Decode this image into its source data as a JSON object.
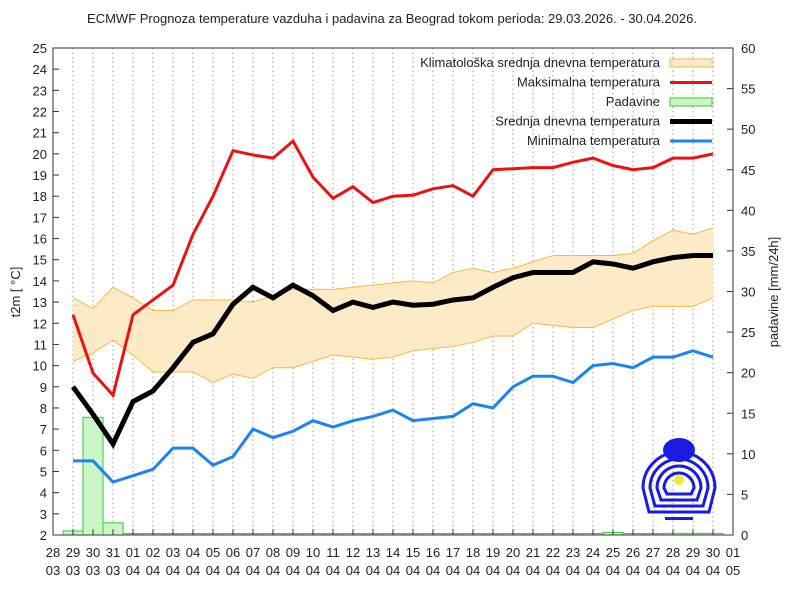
{
  "chart_data": {
    "type": "line",
    "title": "ECMWF Prognoza temperature vazduha i padavina za Beograd tokom perioda: 29.03.2026. - 30.04.2026.",
    "ylabel": "t2m [ °C]",
    "y2label": "padavine [mm/24h]",
    "ylim": [
      2,
      25
    ],
    "y2lim": [
      0,
      60
    ],
    "yticks": [
      2,
      3,
      4,
      5,
      6,
      7,
      8,
      9,
      10,
      11,
      12,
      13,
      14,
      15,
      16,
      17,
      18,
      19,
      20,
      21,
      22,
      23,
      24,
      25
    ],
    "y2ticks": [
      0,
      5,
      10,
      15,
      20,
      25,
      30,
      35,
      40,
      45,
      50,
      55,
      60
    ],
    "xtick_labels": [
      [
        "28",
        "03"
      ],
      [
        "29",
        "03"
      ],
      [
        "30",
        "03"
      ],
      [
        "31",
        "03"
      ],
      [
        "01",
        "04"
      ],
      [
        "02",
        "04"
      ],
      [
        "03",
        "04"
      ],
      [
        "04",
        "04"
      ],
      [
        "05",
        "04"
      ],
      [
        "06",
        "04"
      ],
      [
        "07",
        "04"
      ],
      [
        "08",
        "04"
      ],
      [
        "09",
        "04"
      ],
      [
        "10",
        "04"
      ],
      [
        "11",
        "04"
      ],
      [
        "12",
        "04"
      ],
      [
        "13",
        "04"
      ],
      [
        "14",
        "04"
      ],
      [
        "15",
        "04"
      ],
      [
        "16",
        "04"
      ],
      [
        "17",
        "04"
      ],
      [
        "18",
        "04"
      ],
      [
        "19",
        "04"
      ],
      [
        "20",
        "04"
      ],
      [
        "21",
        "04"
      ],
      [
        "22",
        "04"
      ],
      [
        "23",
        "04"
      ],
      [
        "24",
        "04"
      ],
      [
        "25",
        "04"
      ],
      [
        "26",
        "04"
      ],
      [
        "27",
        "04"
      ],
      [
        "28",
        "04"
      ],
      [
        "29",
        "04"
      ],
      [
        "30",
        "04"
      ],
      [
        "01",
        "05"
      ]
    ],
    "x": [
      "29.03",
      "30.03",
      "31.03",
      "01.04",
      "02.04",
      "03.04",
      "04.04",
      "05.04",
      "06.04",
      "07.04",
      "08.04",
      "09.04",
      "10.04",
      "11.04",
      "12.04",
      "13.04",
      "14.04",
      "15.04",
      "16.04",
      "17.04",
      "18.04",
      "19.04",
      "20.04",
      "21.04",
      "22.04",
      "23.04",
      "24.04",
      "25.04",
      "26.04",
      "27.04",
      "28.04",
      "29.04",
      "30.04"
    ],
    "grid": "vertical dotted",
    "legend": "top-right",
    "climatology": {
      "name": "Klimatološka srednja dnevna temperatura",
      "color": "#f5b942",
      "fill": "#fdebc8",
      "upper": [
        13.2,
        12.7,
        13.7,
        13.2,
        12.6,
        12.6,
        13.1,
        13.1,
        13.1,
        13.0,
        13.3,
        13.6,
        13.6,
        13.6,
        13.7,
        13.8,
        13.9,
        14.0,
        13.9,
        14.4,
        14.6,
        14.4,
        14.6,
        14.9,
        15.2,
        15.2,
        15.2,
        15.2,
        15.3,
        15.9,
        16.4,
        16.2,
        16.5
      ],
      "lower": [
        10.2,
        10.6,
        11.2,
        10.5,
        9.7,
        9.7,
        9.7,
        9.2,
        9.6,
        9.4,
        9.9,
        9.9,
        10.2,
        10.5,
        10.4,
        10.3,
        10.4,
        10.7,
        10.8,
        10.9,
        11.1,
        11.4,
        11.4,
        12.0,
        11.9,
        11.8,
        11.8,
        12.2,
        12.6,
        12.8,
        12.8,
        12.8,
        13.2
      ]
    },
    "series": [
      {
        "name": "Maksimalna temperatura",
        "color": "#ee1111",
        "width": 3,
        "values": [
          12.4,
          9.65,
          8.6,
          12.4,
          13.1,
          13.8,
          16.2,
          18.0,
          20.15,
          19.95,
          19.8,
          20.6,
          18.9,
          17.9,
          18.45,
          17.7,
          18.0,
          18.05,
          18.35,
          18.5,
          18.0,
          19.25,
          19.3,
          19.35,
          19.35,
          19.6,
          19.8,
          19.45,
          19.25,
          19.35,
          19.8,
          19.8,
          20.0
        ]
      },
      {
        "name": "Srednja dnevna temperatura",
        "color": "#000000",
        "width": 5,
        "values": [
          9.0,
          7.7,
          6.3,
          8.3,
          8.8,
          9.9,
          11.1,
          11.5,
          12.9,
          13.7,
          13.2,
          13.8,
          13.3,
          12.6,
          13.0,
          12.75,
          13.0,
          12.85,
          12.9,
          13.1,
          13.2,
          13.7,
          14.15,
          14.4,
          14.4,
          14.4,
          14.9,
          14.8,
          14.6,
          14.9,
          15.1,
          15.2,
          15.2
        ]
      },
      {
        "name": "Minimalna temperatura",
        "color": "#1a85f0",
        "width": 3,
        "values": [
          5.5,
          5.5,
          4.5,
          4.8,
          5.1,
          6.1,
          6.1,
          5.3,
          5.7,
          7.0,
          6.6,
          6.9,
          7.4,
          7.1,
          7.4,
          7.6,
          7.9,
          7.4,
          7.5,
          7.6,
          8.2,
          8.0,
          9.0,
          9.5,
          9.5,
          9.2,
          10.0,
          10.1,
          9.9,
          10.4,
          10.4,
          10.7,
          10.4
        ]
      }
    ],
    "precipitation": {
      "name": "Padavine",
      "color": "#33cc33",
      "fill": "#ccf5c8",
      "axis": "right",
      "values": [
        0.5,
        14.5,
        1.5,
        0.1,
        0.1,
        0.1,
        0.1,
        0,
        0,
        0,
        0,
        0,
        0,
        0,
        0,
        0,
        0,
        0,
        0,
        0,
        0,
        0,
        0.1,
        0.1,
        0.1,
        0.1,
        0,
        0.3,
        0.1,
        0,
        0.2,
        0.2,
        0.2
      ]
    },
    "legend_order": [
      "Klimatološka srednja dnevna temperatura",
      "Maksimalna temperatura",
      "Padavine",
      "Srednja dnevna temperatura",
      "Minimalna temperatura"
    ]
  }
}
